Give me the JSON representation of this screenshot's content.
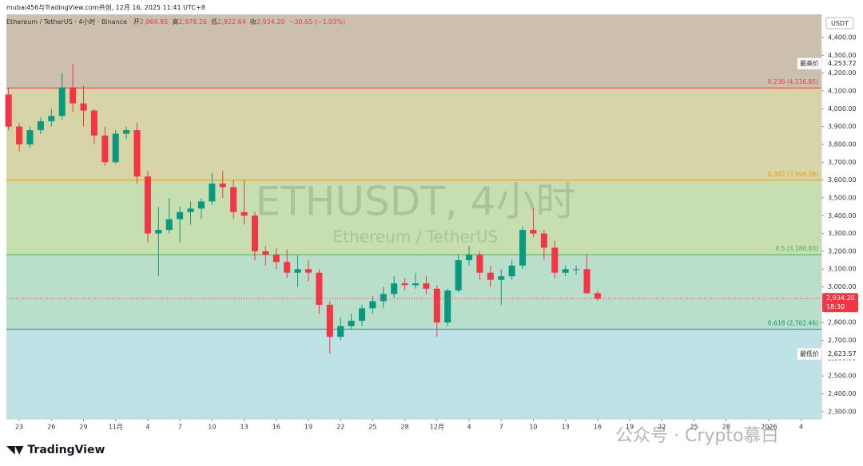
{
  "top_note": "mubai456与TradingView.com共创, 12月 16, 2025 11:41 UTC+8",
  "header": {
    "symbol": "Ethereum / TetherUS · 4小时 · Binance",
    "open_label": "开",
    "open": "2,964.85",
    "high_label": "高",
    "high": "2,978.26",
    "low_label": "低",
    "low": "2,922.64",
    "close_label": "收",
    "close": "2,934.20",
    "change": "−30.65 (−1.03%)"
  },
  "currency": "USDT",
  "brand": "TradingView",
  "overlay_watermark": "公众号 · Crypto慕白",
  "chart_data": {
    "type": "candlestick",
    "title": "ETHUSDT, 4小时",
    "subtitle": "Ethereum / TetherUS",
    "up_color": "#089981",
    "down_color": "#f23645",
    "x": [
      -1,
      0,
      1,
      2,
      3,
      4,
      5,
      6,
      7,
      8,
      9,
      10,
      11,
      12,
      13,
      14,
      15,
      16,
      17,
      18,
      19,
      20,
      21,
      22,
      23,
      24,
      25,
      26,
      27,
      28,
      29,
      30,
      31,
      32,
      33,
      34,
      35,
      36,
      37,
      38,
      39,
      40,
      41,
      42,
      43,
      44,
      45,
      46,
      47,
      48,
      49,
      50,
      51,
      52,
      53,
      54
    ],
    "open": [
      4080,
      3900,
      3800,
      3880,
      3930,
      3960,
      4120,
      4030,
      3990,
      3850,
      3700,
      3860,
      3880,
      3620,
      3300,
      3320,
      3380,
      3420,
      3440,
      3480,
      3580,
      3560,
      3420,
      3400,
      3200,
      3180,
      3140,
      3080,
      3100,
      3080,
      2900,
      2720,
      2780,
      2810,
      2880,
      2920,
      2960,
      3020,
      3010,
      3020,
      2990,
      2800,
      2980,
      3150,
      3180,
      3080,
      3040,
      3060,
      3120,
      3320,
      3300,
      3220,
      3080,
      3100,
      3100,
      2964.85
    ],
    "high": [
      4120,
      3920,
      3900,
      3950,
      4000,
      4200,
      4253.72,
      4130,
      4000,
      3900,
      3880,
      3900,
      3920,
      3650,
      3450,
      3500,
      3450,
      3480,
      3500,
      3640,
      3650,
      3600,
      3600,
      3420,
      3230,
      3220,
      3210,
      3180,
      3150,
      3100,
      2920,
      2830,
      2850,
      2900,
      2950,
      3000,
      3060,
      3050,
      3080,
      3060,
      3010,
      2990,
      3180,
      3230,
      3200,
      3120,
      3100,
      3150,
      3340,
      3440,
      3320,
      3260,
      3120,
      3120,
      3180,
      2978.26
    ],
    "low": [
      3880,
      3760,
      3780,
      3860,
      3900,
      3940,
      3980,
      3900,
      3800,
      3680,
      3690,
      3830,
      3580,
      3250,
      3060,
      3300,
      3250,
      3350,
      3380,
      3460,
      3500,
      3380,
      3350,
      3150,
      3120,
      3100,
      3050,
      3000,
      3030,
      2850,
      2623.57,
      2700,
      2760,
      2780,
      2850,
      2880,
      2940,
      2980,
      2990,
      2960,
      2720,
      2780,
      2970,
      3120,
      3040,
      3000,
      2900,
      3040,
      3100,
      3280,
      3150,
      3050,
      3060,
      3070,
      2960,
      2922.64
    ],
    "close": [
      3900,
      3800,
      3880,
      3930,
      3960,
      4120,
      4030,
      3990,
      3850,
      3700,
      3860,
      3880,
      3620,
      3300,
      3320,
      3380,
      3420,
      3440,
      3480,
      3580,
      3560,
      3420,
      3400,
      3200,
      3180,
      3140,
      3080,
      3100,
      3080,
      2900,
      2720,
      2780,
      2810,
      2880,
      2920,
      2960,
      3020,
      3010,
      3020,
      2990,
      2800,
      2980,
      3150,
      3180,
      3080,
      3040,
      3060,
      3120,
      3320,
      3300,
      3220,
      3080,
      3100,
      3100,
      2964.85,
      2934.2
    ],
    "xlim": [
      -1.2,
      74.9
    ],
    "xticks": [
      {
        "value": 0,
        "label": "23"
      },
      {
        "value": 3,
        "label": "26"
      },
      {
        "value": 6,
        "label": "29"
      },
      {
        "value": 9,
        "label": "11月"
      },
      {
        "value": 12,
        "label": "4"
      },
      {
        "value": 15,
        "label": "7"
      },
      {
        "value": 18,
        "label": "10"
      },
      {
        "value": 21,
        "label": "13"
      },
      {
        "value": 24,
        "label": "16"
      },
      {
        "value": 27,
        "label": "19"
      },
      {
        "value": 30,
        "label": "22"
      },
      {
        "value": 33,
        "label": "25"
      },
      {
        "value": 36,
        "label": "28"
      },
      {
        "value": 39,
        "label": "12月"
      },
      {
        "value": 42,
        "label": "4"
      },
      {
        "value": 45,
        "label": "7"
      },
      {
        "value": 48,
        "label": "10"
      },
      {
        "value": 51,
        "label": "13"
      },
      {
        "value": 54,
        "label": "16"
      },
      {
        "value": 57,
        "label": "19"
      },
      {
        "value": 60,
        "label": "22"
      },
      {
        "value": 63,
        "label": "25"
      },
      {
        "value": 66,
        "label": "28"
      },
      {
        "value": 70,
        "label": "2026"
      },
      {
        "value": 73,
        "label": "4"
      }
    ],
    "ylim": [
      2259,
      4530
    ],
    "yticks": [
      {
        "value": 2300,
        "label": "2,300.00"
      },
      {
        "value": 2400,
        "label": "2,400.00"
      },
      {
        "value": 2500,
        "label": "2,500.00"
      },
      {
        "value": 2600,
        "label": "2,600.00"
      },
      {
        "value": 2700,
        "label": "2,700.00"
      },
      {
        "value": 2800,
        "label": "2,800.00"
      },
      {
        "value": 2900,
        "label": "2,900.00"
      },
      {
        "value": 3000,
        "label": "3,000.00"
      },
      {
        "value": 3100,
        "label": "3,100.00"
      },
      {
        "value": 3200,
        "label": "3,200.00"
      },
      {
        "value": 3300,
        "label": "3,300.00"
      },
      {
        "value": 3400,
        "label": "3,400.00"
      },
      {
        "value": 3500,
        "label": "3,500.00"
      },
      {
        "value": 3600,
        "label": "3,600.00"
      },
      {
        "value": 3700,
        "label": "3,700.00"
      },
      {
        "value": 3800,
        "label": "3,800.00"
      },
      {
        "value": 3900,
        "label": "3,900.00"
      },
      {
        "value": 4000,
        "label": "4,000.00"
      },
      {
        "value": 4100,
        "label": "4,100.00"
      },
      {
        "value": 4200,
        "label": "4,200.00"
      },
      {
        "value": 4300,
        "label": "4,300.00"
      },
      {
        "value": 4400,
        "label": "4,400.00"
      }
    ],
    "fib_levels": [
      {
        "value": 4116.85,
        "label": "0.236 (4,116.85)",
        "color": "#f23645"
      },
      {
        "value": 3599.38,
        "label": "0.382 (3,599.38)",
        "color": "#ff9800"
      },
      {
        "value": 3180.83,
        "label": "0.5 (3,180.83)",
        "color": "#4caf50"
      },
      {
        "value": 2762.46,
        "label": "0.618 (2,762.46)",
        "color": "#089981"
      }
    ],
    "zone_colors": [
      "#cdbfae",
      "#d6d5a7",
      "#c6deb0",
      "#b9dfca",
      "#bfe2e6"
    ],
    "high_marker": {
      "name": "最高价",
      "value": 4253.72,
      "value_label": "4,253.72"
    },
    "low_marker": {
      "name": "最低价",
      "value": 2623.57,
      "value_label": "2,623.57"
    },
    "last_price": {
      "value": 2934.2,
      "label": "2,934.20",
      "countdown": "18:30",
      "color": "#f23645"
    }
  }
}
